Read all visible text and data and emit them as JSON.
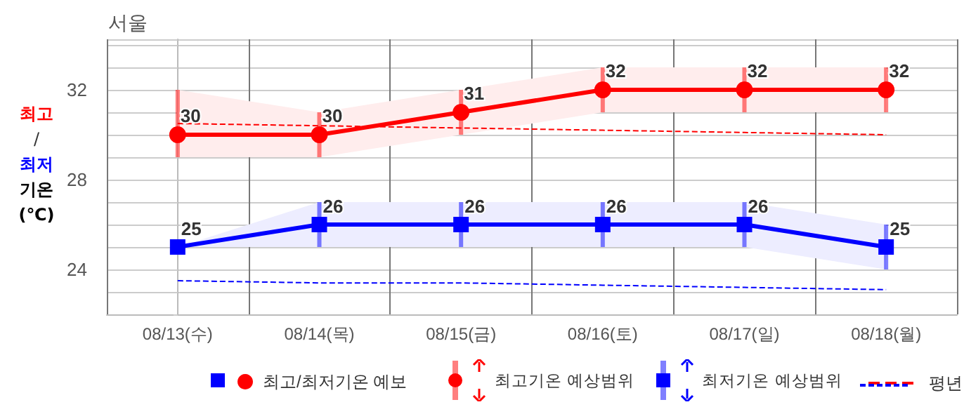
{
  "chart_data": {
    "type": "line",
    "title": "서울",
    "ylabel": "최고/최저 기온 (℃)",
    "categories": [
      "08/13(수)",
      "08/14(목)",
      "08/15(금)",
      "08/16(토)",
      "08/17(일)",
      "08/18(월)"
    ],
    "ylim": [
      22,
      34.25
    ],
    "yticks": [
      {
        "value": 22,
        "label": null
      },
      {
        "value": 23,
        "label": null
      },
      24,
      {
        "value": 25,
        "label": null
      },
      {
        "value": 26,
        "label": null
      },
      {
        "value": 27,
        "label": null
      },
      28,
      {
        "value": 29,
        "label": null
      },
      {
        "value": 30,
        "label": null
      },
      {
        "value": 31,
        "label": null
      },
      32,
      {
        "value": 33,
        "label": null
      },
      {
        "value": 34,
        "label": null
      }
    ],
    "grid": true,
    "legend": "bottom",
    "annotations": [
      "최고기온 예상범위",
      "최저기온 예상범위"
    ],
    "series": [
      {
        "name": "최고/최저기온 예보",
        "color": "#ff0000",
        "marker": "circle",
        "values": [
          30,
          30,
          31,
          32,
          32,
          32
        ],
        "value_labels": [
          "30",
          "30",
          "31",
          "32",
          "32",
          "32"
        ],
        "errors": [
          [
            29,
            32
          ],
          [
            29,
            31
          ],
          [
            30,
            32
          ],
          [
            31,
            33
          ],
          [
            31,
            33
          ],
          [
            31,
            33
          ]
        ],
        "lower": [
          29,
          29,
          30,
          31,
          31,
          31
        ],
        "upper": [
          32,
          31,
          32,
          33,
          33,
          33
        ]
      },
      {
        "color": "#0000ff",
        "marker": "square",
        "values": [
          25,
          26,
          26,
          26,
          26,
          25
        ],
        "value_labels": [
          "25",
          "26",
          "26",
          "26",
          "26",
          "25"
        ],
        "errors": [
          [
            25,
            25
          ],
          [
            25,
            27
          ],
          [
            25,
            27
          ],
          [
            25,
            27
          ],
          [
            25,
            27
          ],
          [
            24,
            26
          ]
        ],
        "lower": [
          25,
          25,
          25,
          25,
          25,
          24
        ],
        "upper": [
          25,
          27,
          27,
          27,
          27,
          26
        ]
      },
      {
        "name": "평년",
        "color": "#ff0000",
        "marker": "none",
        "line_style": "dashed",
        "values": [
          30.5,
          30.4,
          30.3,
          30.2,
          30.1,
          30.0
        ]
      },
      {
        "color": "#0000ff",
        "marker": "none",
        "line_style": "dashed",
        "values": [
          23.5,
          23.4,
          23.4,
          23.3,
          23.2,
          23.1
        ]
      }
    ]
  }
}
